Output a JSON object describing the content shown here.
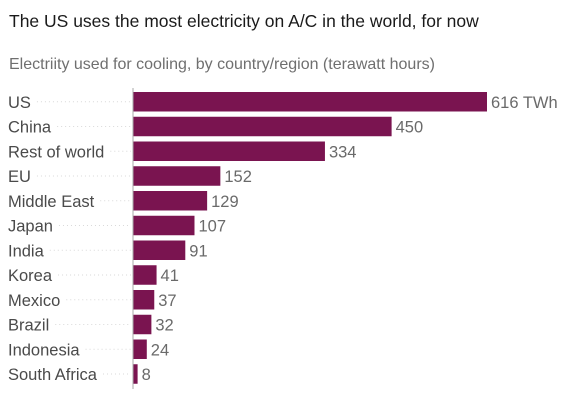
{
  "chart_data": {
    "type": "bar",
    "orientation": "horizontal",
    "title": "The US uses the most electricity on A/C in the world, for now",
    "subtitle": "Electriity used for cooling, by country/region (terawatt hours)",
    "categories": [
      "US",
      "China",
      "Rest of world",
      "EU",
      "Middle East",
      "Japan",
      "India",
      "Korea",
      "Mexico",
      "Brazil",
      "Indonesia",
      "South Africa"
    ],
    "values": [
      616,
      450,
      334,
      152,
      129,
      107,
      91,
      41,
      37,
      32,
      24,
      8
    ],
    "value_labels": [
      "616 TWh",
      "450",
      "334",
      "152",
      "129",
      "107",
      "91",
      "41",
      "37",
      "32",
      "24",
      "8"
    ],
    "xlim": [
      0,
      616
    ],
    "grid": false,
    "colors": {
      "bar": "#7a1450",
      "label": "#4a4a4a",
      "value": "#6a6a6a",
      "axis": "#aaaaaa",
      "guide": "#d9d9d9"
    }
  }
}
